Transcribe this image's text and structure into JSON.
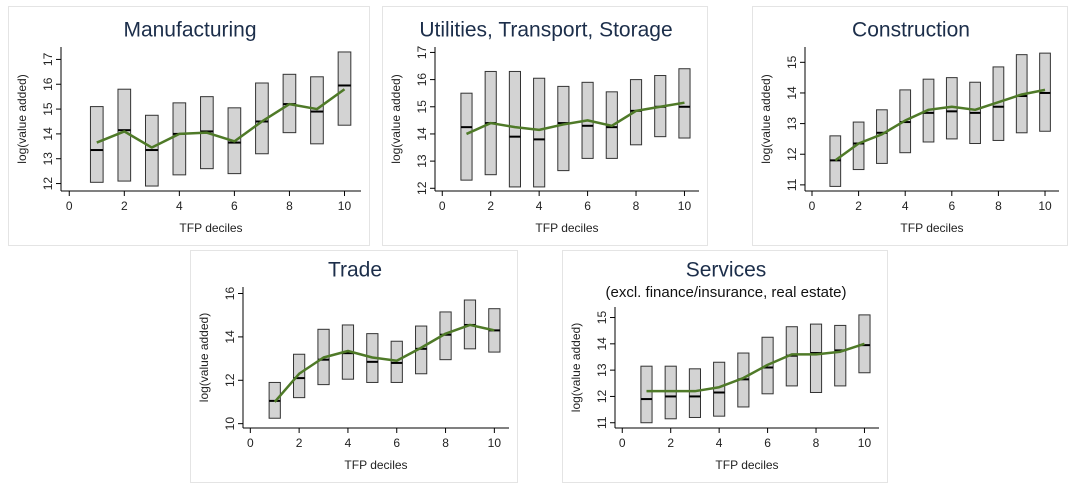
{
  "chart_data": [
    {
      "type": "range",
      "title": "Manufacturing",
      "xlabel": "TFP deciles",
      "ylabel": "log(value added)",
      "x": [
        1,
        2,
        3,
        4,
        5,
        6,
        7,
        8,
        9,
        10
      ],
      "low": [
        12.05,
        12.1,
        11.9,
        12.35,
        12.6,
        12.4,
        13.2,
        14.05,
        13.6,
        14.35
      ],
      "high": [
        15.1,
        15.8,
        14.75,
        15.25,
        15.5,
        15.05,
        16.05,
        16.4,
        16.3,
        17.3
      ],
      "median": [
        13.35,
        14.15,
        13.35,
        14.0,
        14.1,
        13.65,
        14.5,
        15.2,
        14.9,
        15.95
      ],
      "mean": [
        13.65,
        14.1,
        13.45,
        14.0,
        14.05,
        13.7,
        14.5,
        15.2,
        15.0,
        15.8
      ],
      "xlim": [
        -0.3,
        10.6
      ],
      "xticks": [
        0,
        2,
        4,
        6,
        8,
        10
      ],
      "ylim": [
        11.7,
        17.5
      ],
      "yticks": [
        12,
        13,
        14,
        15,
        16,
        17
      ],
      "box_color": "#d3d3d3",
      "line_color": "#4f7a28"
    },
    {
      "type": "range",
      "title": "Utilities, Transport, Storage",
      "xlabel": "TFP deciles",
      "ylabel": "log(value added)",
      "x": [
        1,
        2,
        3,
        4,
        5,
        6,
        7,
        8,
        9,
        10
      ],
      "low": [
        12.3,
        12.5,
        12.05,
        12.05,
        12.65,
        13.1,
        13.1,
        13.6,
        13.9,
        13.85
      ],
      "high": [
        15.5,
        16.3,
        16.3,
        16.05,
        15.75,
        15.9,
        15.55,
        16.0,
        16.15,
        16.4
      ],
      "median": [
        14.25,
        14.4,
        13.9,
        13.8,
        14.4,
        14.3,
        14.25,
        14.85,
        15.0,
        15.0
      ],
      "mean": [
        14.0,
        14.4,
        14.25,
        14.15,
        14.35,
        14.5,
        14.3,
        14.85,
        15.0,
        15.15
      ],
      "xlim": [
        -0.3,
        10.6
      ],
      "xticks": [
        0,
        2,
        4,
        6,
        8,
        10
      ],
      "ylim": [
        11.9,
        17.2
      ],
      "yticks": [
        12,
        13,
        14,
        15,
        16,
        17
      ],
      "box_color": "#d3d3d3",
      "line_color": "#4f7a28"
    },
    {
      "type": "range",
      "title": "Construction",
      "xlabel": "TFP deciles",
      "ylabel": "log(value added)",
      "x": [
        1,
        2,
        3,
        4,
        5,
        6,
        7,
        8,
        9,
        10
      ],
      "low": [
        10.95,
        11.5,
        11.7,
        12.05,
        12.4,
        12.5,
        12.35,
        12.45,
        12.7,
        12.75
      ],
      "high": [
        12.6,
        13.05,
        13.45,
        14.1,
        14.45,
        14.5,
        14.35,
        14.85,
        15.25,
        15.3
      ],
      "median": [
        11.8,
        12.35,
        12.7,
        13.05,
        13.35,
        13.4,
        13.35,
        13.55,
        13.9,
        14.0
      ],
      "mean": [
        11.8,
        12.35,
        12.65,
        13.1,
        13.45,
        13.55,
        13.45,
        13.7,
        13.95,
        14.1
      ],
      "xlim": [
        -0.3,
        10.6
      ],
      "xticks": [
        0,
        2,
        4,
        6,
        8,
        10
      ],
      "ylim": [
        10.8,
        15.5
      ],
      "yticks": [
        11,
        12,
        13,
        14,
        15
      ],
      "box_color": "#d3d3d3",
      "line_color": "#4f7a28"
    },
    {
      "type": "range",
      "title": "Trade",
      "xlabel": "TFP deciles",
      "ylabel": "log(value added)",
      "x": [
        1,
        2,
        3,
        4,
        5,
        6,
        7,
        8,
        9,
        10
      ],
      "low": [
        10.25,
        11.2,
        11.8,
        12.05,
        11.9,
        11.9,
        12.3,
        12.95,
        13.45,
        13.3
      ],
      "high": [
        11.9,
        13.2,
        14.35,
        14.55,
        14.15,
        13.8,
        14.5,
        15.15,
        15.7,
        15.3
      ],
      "median": [
        11.05,
        12.1,
        12.95,
        13.25,
        12.85,
        12.8,
        13.45,
        14.1,
        14.55,
        14.3
      ],
      "mean": [
        11.0,
        12.3,
        13.05,
        13.35,
        13.05,
        12.9,
        13.5,
        14.15,
        14.55,
        14.3
      ],
      "xlim": [
        -0.3,
        10.6
      ],
      "xticks": [
        0,
        2,
        4,
        6,
        8,
        10
      ],
      "ylim": [
        9.8,
        16.3
      ],
      "yticks": [
        10,
        12,
        14,
        16
      ],
      "box_color": "#d3d3d3",
      "line_color": "#4f7a28"
    },
    {
      "type": "range",
      "title": "Services",
      "subtitle": "(excl. finance/insurance, real estate)",
      "xlabel": "TFP deciles",
      "ylabel": "log(value added)",
      "x": [
        1,
        2,
        3,
        4,
        5,
        6,
        7,
        8,
        9,
        10
      ],
      "low": [
        11.0,
        11.15,
        11.2,
        11.25,
        11.6,
        12.1,
        12.4,
        12.15,
        12.4,
        12.9
      ],
      "high": [
        13.15,
        13.15,
        13.05,
        13.3,
        13.65,
        14.25,
        14.65,
        14.75,
        14.7,
        15.1
      ],
      "median": [
        11.9,
        12.0,
        12.0,
        12.15,
        12.65,
        13.1,
        13.55,
        13.65,
        13.75,
        13.95
      ],
      "mean": [
        12.2,
        12.2,
        12.2,
        12.35,
        12.7,
        13.2,
        13.6,
        13.6,
        13.7,
        14.0
      ],
      "xlim": [
        -0.3,
        10.6
      ],
      "xticks": [
        0,
        2,
        4,
        6,
        8,
        10
      ],
      "ylim": [
        10.8,
        15.4
      ],
      "yticks": [
        11,
        12,
        13,
        14,
        15
      ],
      "box_color": "#d3d3d3",
      "line_color": "#4f7a28"
    }
  ]
}
